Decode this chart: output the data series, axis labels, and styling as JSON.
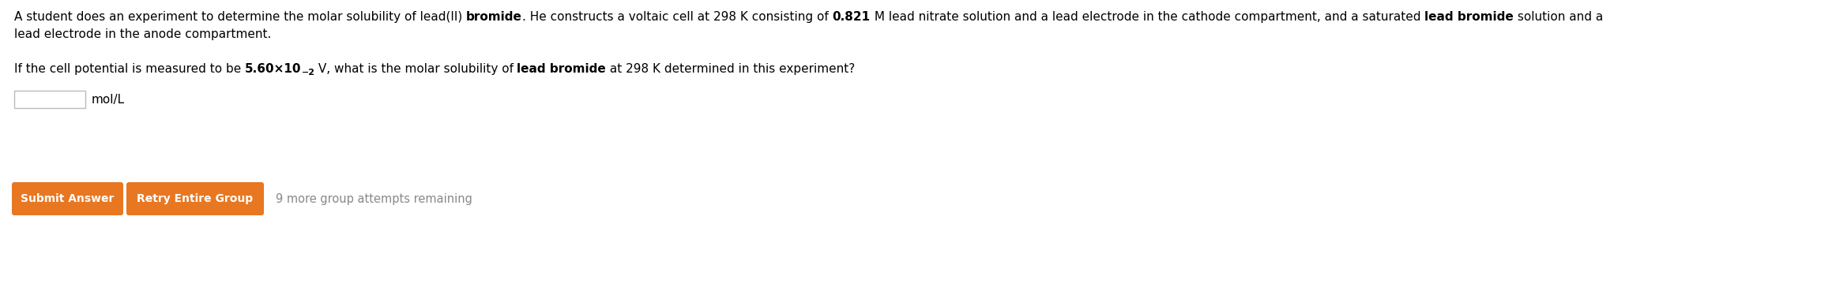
{
  "background_color": "#ffffff",
  "btn_color": "#e87722",
  "btn_text_color": "#ffffff",
  "remaining_color": "#888888",
  "font_size_main": 11.0,
  "font_size_btn": 10.0,
  "font_size_remaining": 10.5
}
